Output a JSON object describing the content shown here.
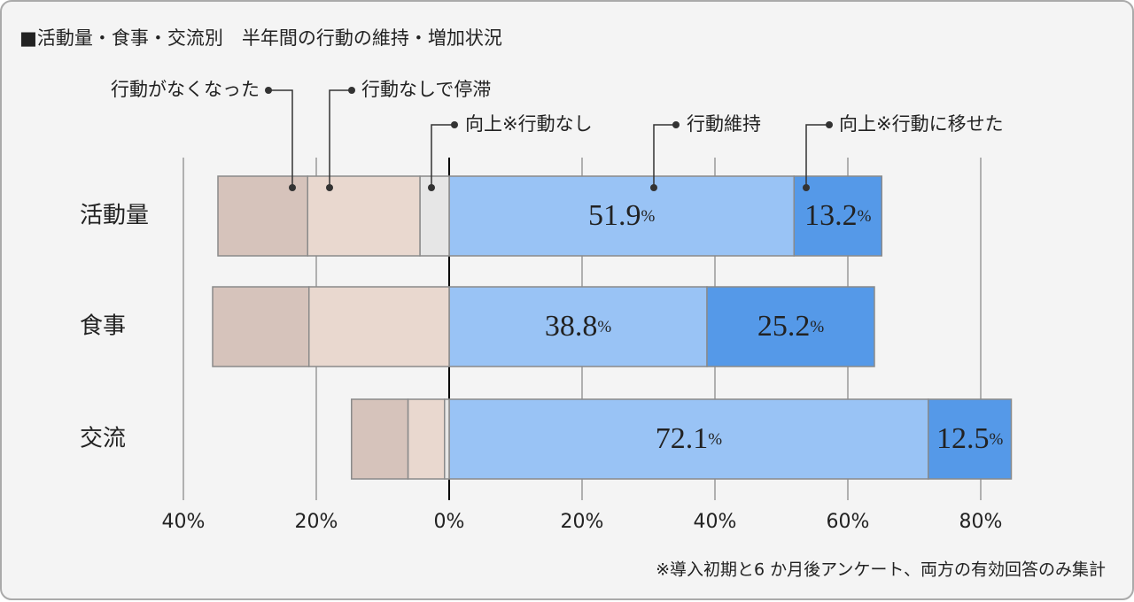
{
  "chart_data": {
    "type": "diverging-bar",
    "title": "■活動量・食事・交流別　半年間の行動の維持・増加状況",
    "note": "※導入初期と6 か月後アンケート、両方の有効回答のみ集計",
    "categories": [
      "活動量",
      "食事",
      "交流"
    ],
    "series": [
      {
        "name": "行動がなくなった",
        "color": "#d6c3bb",
        "values": [
          -13.5,
          -14.5,
          -8.5
        ]
      },
      {
        "name": "行動なしで停滞",
        "color": "#e9d8cf",
        "values": [
          -16.9,
          -21.1,
          -5.5
        ]
      },
      {
        "name": "向上※行動なし",
        "color": "#e6e6e6",
        "values": [
          -4.4,
          0,
          -0.7
        ]
      },
      {
        "name": "行動維持",
        "color": "#99c3f5",
        "values": [
          51.9,
          38.8,
          72.1
        ],
        "value_labels": [
          "51.9%",
          "38.8%",
          "72.1%"
        ]
      },
      {
        "name": "向上※行動に移せた",
        "color": "#5599e8",
        "values": [
          13.2,
          25.2,
          12.5
        ],
        "value_labels": [
          "13.2%",
          "25.2%",
          "12.5%"
        ]
      }
    ],
    "xlim": [
      -40,
      80
    ],
    "xticks": [
      {
        "value": -40,
        "label": "40%"
      },
      {
        "value": -20,
        "label": "20%"
      },
      {
        "value": 0,
        "label": "0%"
      },
      {
        "value": 20,
        "label": "20%"
      },
      {
        "value": 40,
        "label": "40%"
      },
      {
        "value": 60,
        "label": "60%"
      },
      {
        "value": 80,
        "label": "80%"
      }
    ],
    "grid": true
  }
}
